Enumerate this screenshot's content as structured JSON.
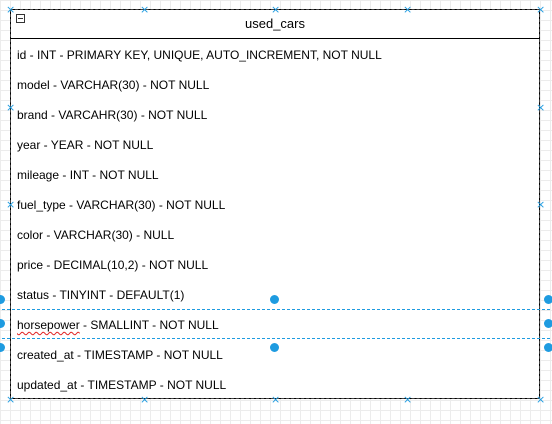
{
  "table": {
    "name": "used_cars",
    "columns": [
      {
        "text": "id - INT - PRIMARY KEY, UNIQUE, AUTO_INCREMENT, NOT NULL"
      },
      {
        "text": "model - VARCHAR(30) - NOT NULL"
      },
      {
        "text": "brand - VARCAHR(30) - NOT NULL"
      },
      {
        "text": "year - YEAR - NOT NULL"
      },
      {
        "text": "mileage - INT - NOT NULL"
      },
      {
        "text": "fuel_type - VARCHAR(30) - NOT NULL"
      },
      {
        "text": "color - VARCHAR(30) - NULL"
      },
      {
        "text": "price - DECIMAL(10,2) - NOT NULL"
      },
      {
        "text": "status - TINYINT - DEFAULT(1)"
      },
      {
        "name": "horsepower",
        "rest": " - SMALLINT - NOT NULL"
      },
      {
        "text": "created_at - TIMESTAMP - NOT NULL"
      },
      {
        "text": "updated_at - TIMESTAMP - NOT NULL"
      }
    ]
  },
  "colors": {
    "selection": "#1e9be0",
    "spellcheck": "#e02020"
  }
}
